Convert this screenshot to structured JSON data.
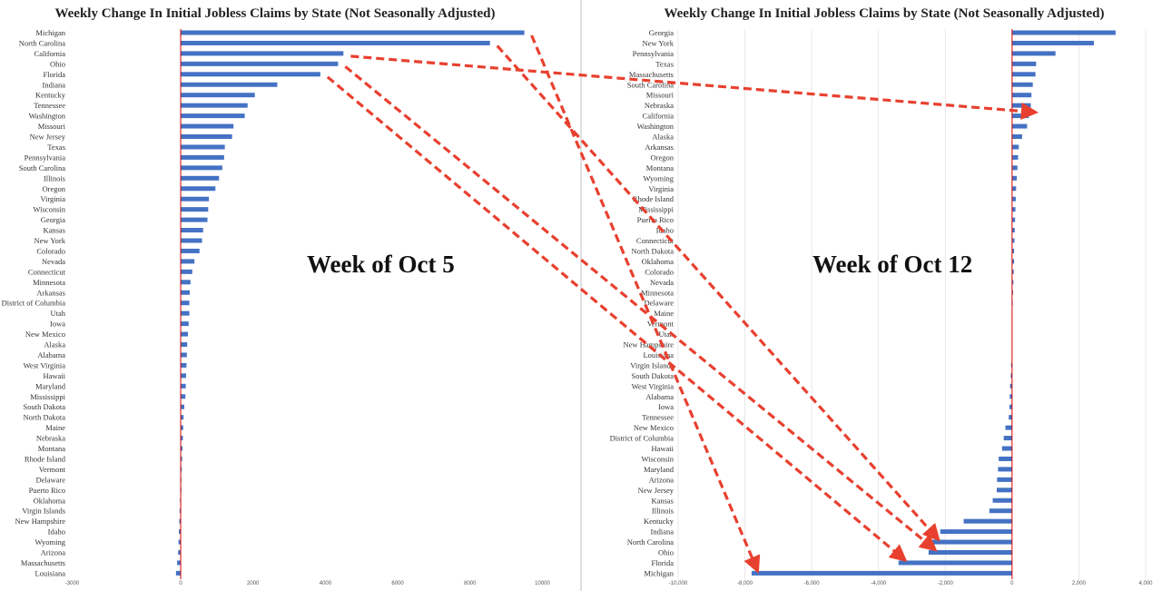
{
  "colors": {
    "bar": "#4472c4",
    "zero_line": "#d40000",
    "arrow": "#e8402f",
    "divider": "#bfbfbf"
  },
  "chart_data": [
    {
      "type": "bar",
      "orientation": "horizontal",
      "title": "Weekly Change In Initial Jobless Claims by State (Not Seasonally Adjusted)",
      "annotation": "Week of Oct 5",
      "xlim": [
        -3000,
        10000
      ],
      "xticks": [
        -3000,
        0,
        2000,
        4000,
        6000,
        8000,
        10000
      ],
      "xtick_labels": [
        "-3000",
        "0",
        "2000",
        "4000",
        "6000",
        "8000",
        "10000"
      ],
      "grid": false,
      "categories": [
        "Michigan",
        "North Carolina",
        "California",
        "Ohio",
        "Florida",
        "Indiana",
        "Kentucky",
        "Tennessee",
        "Washington",
        "Missouri",
        "New Jersey",
        "Texas",
        "Pennsylvania",
        "South Carolina",
        "Illinois",
        "Oregon",
        "Virginia",
        "Wisconsin",
        "Georgia",
        "Kansas",
        "New York",
        "Colorado",
        "Nevada",
        "Connecticut",
        "Minnesota",
        "Arkansas",
        "District of Columbia",
        "Utah",
        "Iowa",
        "New Mexico",
        "Alaska",
        "Alabama",
        "West Virginia",
        "Hawaii",
        "Maryland",
        "Mississippi",
        "South Dakota",
        "North Dakota",
        "Maine",
        "Nebraska",
        "Montana",
        "Rhode Island",
        "Vermont",
        "Delaware",
        "Puerto Rico",
        "Oklahoma",
        "Virgin Islands",
        "New Hampshire",
        "Idaho",
        "Wyoming",
        "Arizona",
        "Massachusetts",
        "Louisiana"
      ],
      "values": [
        9500,
        8550,
        4500,
        4350,
        3860,
        2670,
        2050,
        1850,
        1770,
        1460,
        1420,
        1220,
        1200,
        1150,
        1060,
        960,
        780,
        760,
        740,
        620,
        590,
        520,
        380,
        320,
        270,
        250,
        240,
        240,
        220,
        200,
        180,
        170,
        160,
        150,
        140,
        130,
        100,
        80,
        70,
        60,
        50,
        40,
        30,
        20,
        10,
        -20,
        -30,
        -40,
        -50,
        -60,
        -70,
        -100,
        -130
      ]
    },
    {
      "type": "bar",
      "orientation": "horizontal",
      "title": "Weekly Change In Initial Jobless Claims by State (Not Seasonally Adjusted)",
      "annotation": "Week of Oct 12",
      "xlim": [
        -10000,
        4000
      ],
      "xticks": [
        -10000,
        -8000,
        -6000,
        -4000,
        -2000,
        0,
        2000,
        4000
      ],
      "xtick_labels": [
        "-10,000",
        "-8,000",
        "-6,000",
        "-4,000",
        "-2,000",
        "0",
        "2,000",
        "4,000"
      ],
      "grid": true,
      "categories": [
        "Georgia",
        "New York",
        "Pennsylvania",
        "Texas",
        "Massachusetts",
        "South Carolina",
        "Missouri",
        "Nebraska",
        "California",
        "Washington",
        "Alaska",
        "Arkansas",
        "Oregon",
        "Montana",
        "Wyoming",
        "Virginia",
        "Rhode Island",
        "Mississippi",
        "Puerto Rico",
        "Idaho",
        "Connecticut",
        "North Dakota",
        "Oklahoma",
        "Colorado",
        "Nevada",
        "Minnesota",
        "Delaware",
        "Maine",
        "Vermont",
        "Utah",
        "New Hampshire",
        "Louisiana",
        "Virgin Islands",
        "South Dakota",
        "West Virginia",
        "Alabama",
        "Iowa",
        "Tennessee",
        "New Mexico",
        "District of Columbia",
        "Hawaii",
        "Wisconsin",
        "Maryland",
        "Arizona",
        "New Jersey",
        "Kansas",
        "Illinois",
        "Kentucky",
        "Indiana",
        "North Carolina",
        "Ohio",
        "Florida",
        "Michigan"
      ],
      "values": [
        3100,
        2450,
        1300,
        720,
        700,
        620,
        580,
        560,
        500,
        450,
        300,
        200,
        180,
        160,
        140,
        120,
        110,
        100,
        90,
        80,
        70,
        60,
        60,
        50,
        40,
        30,
        20,
        0,
        0,
        0,
        0,
        0,
        -30,
        -40,
        -60,
        -70,
        -80,
        -100,
        -200,
        -250,
        -300,
        -400,
        -420,
        -450,
        -460,
        -580,
        -680,
        -1450,
        -2150,
        -2400,
        -2500,
        -3400,
        -7800
      ]
    }
  ]
}
